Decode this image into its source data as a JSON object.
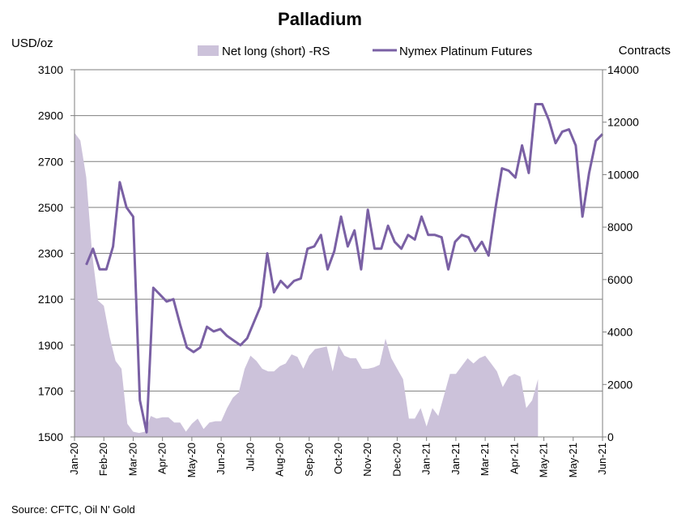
{
  "chart_data": {
    "type": "line",
    "title": "Palladium",
    "left_axis_label": "USD/oz",
    "right_axis_label": "Contracts",
    "source": "Source: CFTC, Oil N' Gold",
    "y_left": {
      "min": 1500,
      "max": 3100,
      "ticks": [
        1500,
        1700,
        1900,
        2100,
        2300,
        2500,
        2700,
        2900,
        3100
      ]
    },
    "y_right": {
      "min": 0,
      "max": 14000,
      "ticks": [
        0,
        2000,
        4000,
        6000,
        8000,
        10000,
        12000,
        14000
      ]
    },
    "x_tick_labels": [
      "Jan-20",
      "Feb-20",
      "Mar-20",
      "Apr-20",
      "May-20",
      "Jun-20",
      "Jul-20",
      "Aug-20",
      "Sep-20",
      "Oct-20",
      "Nov-20",
      "Dec-20",
      "Jan-21",
      "Jan-21",
      "Mar-21",
      "Apr-21",
      "May-21",
      "May-21",
      "Jun-21"
    ],
    "x_tick_index": [
      0,
      5,
      10,
      15,
      20,
      25,
      30,
      35,
      40,
      45,
      50,
      55,
      60,
      65,
      70,
      75,
      80,
      85,
      90
    ],
    "grid": "horizontal",
    "legend_position": "top",
    "colors": {
      "area": "#ccc2da",
      "line": "#7a60a4"
    },
    "series": [
      {
        "name": "Net long (short) -RS",
        "kind": "area",
        "axis": "right",
        "values": [
          11600,
          11300,
          9900,
          7000,
          5200,
          5000,
          3800,
          2900,
          2600,
          500,
          200,
          150,
          200,
          800,
          700,
          750,
          750,
          550,
          550,
          200,
          500,
          700,
          300,
          550,
          600,
          600,
          1100,
          1500,
          1700,
          2600,
          3100,
          2900,
          2600,
          2500,
          2500,
          2700,
          2800,
          3150,
          3050,
          2600,
          3100,
          3350,
          3400,
          3450,
          2500,
          3500,
          3100,
          3000,
          3000,
          2600,
          2600,
          2650,
          2750,
          3750,
          3000,
          2600,
          2200,
          700,
          700,
          1100,
          400,
          1100,
          800,
          1600,
          2400,
          2400,
          2700,
          3000,
          2800,
          3000,
          3100,
          2800,
          2500,
          1900,
          2300,
          2400,
          2300,
          1100,
          1400,
          2200
        ]
      },
      {
        "name": "Nymex Platinum Futures",
        "kind": "line",
        "axis": "left",
        "values": [
          2250,
          2320,
          2230,
          2230,
          2330,
          2610,
          2500,
          2460,
          1660,
          1520,
          2150,
          2120,
          2090,
          2100,
          1990,
          1890,
          1870,
          1890,
          1980,
          1960,
          1970,
          1940,
          1920,
          1900,
          1930,
          2000,
          2070,
          2300,
          2130,
          2180,
          2150,
          2180,
          2190,
          2320,
          2330,
          2380,
          2230,
          2310,
          2460,
          2330,
          2400,
          2230,
          2490,
          2320,
          2320,
          2420,
          2350,
          2320,
          2380,
          2360,
          2460,
          2380,
          2380,
          2370,
          2230,
          2350,
          2380,
          2370,
          2310,
          2350,
          2290,
          2490,
          2670,
          2660,
          2630,
          2770,
          2650,
          2950,
          2950,
          2880,
          2780,
          2830,
          2840,
          2770,
          2460,
          2650,
          2790,
          2820
        ]
      }
    ]
  }
}
